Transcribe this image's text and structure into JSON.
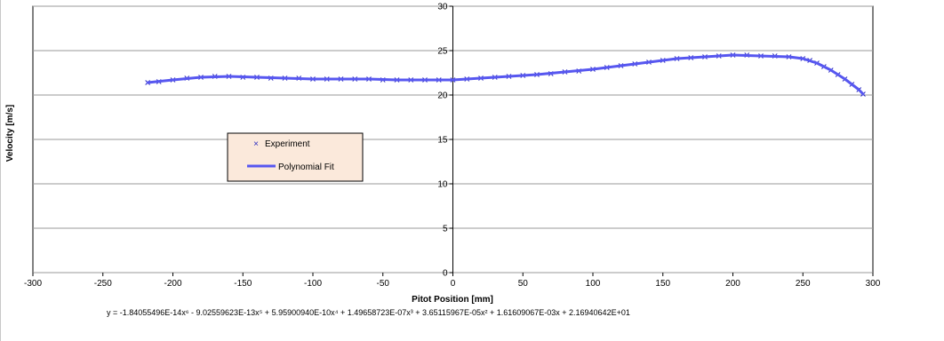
{
  "chart_data": {
    "type": "scatter",
    "xlabel": "Pitot Position  [mm]",
    "ylabel": "Velocity [m/s]",
    "xlim": [
      -300,
      300
    ],
    "ylim": [
      0,
      30
    ],
    "x_ticks": [
      "-300",
      "-250",
      "-200",
      "-150",
      "-100",
      "-50",
      "0",
      "50",
      "100",
      "150",
      "200",
      "250",
      "300"
    ],
    "y_ticks": [
      "0",
      "5",
      "10",
      "15",
      "20",
      "25",
      "30"
    ],
    "grid": "horizontal",
    "legend": {
      "position": "center-left",
      "background": "#fbe9db",
      "entries": [
        "Experiment",
        "Polynomial Fit"
      ]
    },
    "series": [
      {
        "name": "Experiment",
        "marker": "x",
        "color": "#2b2bbf",
        "x": [
          -218,
          -210,
          -200,
          -190,
          -180,
          -170,
          -160,
          -150,
          -140,
          -130,
          -120,
          -110,
          -100,
          -90,
          -80,
          -70,
          -60,
          -50,
          -40,
          -30,
          -20,
          -10,
          0,
          10,
          20,
          30,
          40,
          50,
          60,
          70,
          80,
          90,
          100,
          110,
          120,
          130,
          140,
          150,
          160,
          170,
          180,
          190,
          200,
          210,
          220,
          230,
          240,
          250,
          255,
          260,
          265,
          270,
          275,
          280,
          285,
          290,
          293
        ],
        "y": [
          21.4,
          21.5,
          21.7,
          21.9,
          22.0,
          22.1,
          22.1,
          22.0,
          22.0,
          21.9,
          21.9,
          21.9,
          21.8,
          21.8,
          21.8,
          21.8,
          21.8,
          21.7,
          21.7,
          21.7,
          21.7,
          21.7,
          21.7,
          21.8,
          21.9,
          22.0,
          22.1,
          22.2,
          22.3,
          22.4,
          22.6,
          22.7,
          22.9,
          23.1,
          23.3,
          23.5,
          23.7,
          23.9,
          24.1,
          24.2,
          24.3,
          24.4,
          24.5,
          24.5,
          24.4,
          24.4,
          24.3,
          24.1,
          23.9,
          23.6,
          23.2,
          22.8,
          22.3,
          21.8,
          21.2,
          20.6,
          20.1
        ]
      },
      {
        "name": "Polynomial Fit",
        "type": "line",
        "color": "#5757f0",
        "x": [
          -218,
          -200,
          -180,
          -160,
          -140,
          -120,
          -100,
          -80,
          -60,
          -40,
          -20,
          0,
          20,
          40,
          60,
          80,
          100,
          120,
          140,
          160,
          180,
          200,
          220,
          240,
          250,
          260,
          270,
          280,
          290,
          293
        ],
        "y": [
          21.4,
          21.7,
          22.0,
          22.1,
          22.0,
          21.9,
          21.8,
          21.8,
          21.8,
          21.7,
          21.7,
          21.7,
          21.9,
          22.1,
          22.3,
          22.6,
          22.9,
          23.3,
          23.7,
          24.1,
          24.3,
          24.5,
          24.4,
          24.3,
          24.1,
          23.6,
          22.8,
          21.8,
          20.6,
          20.1
        ]
      }
    ],
    "equation": "y = -1.84055496E-14x⁶ - 9.02559623E-13x⁵ + 5.95900940E-10x⁴ + 1.49658723E-07x³ + 3.65115967E-05x² + 1.61609067E-03x + 2.16940642E+01"
  }
}
